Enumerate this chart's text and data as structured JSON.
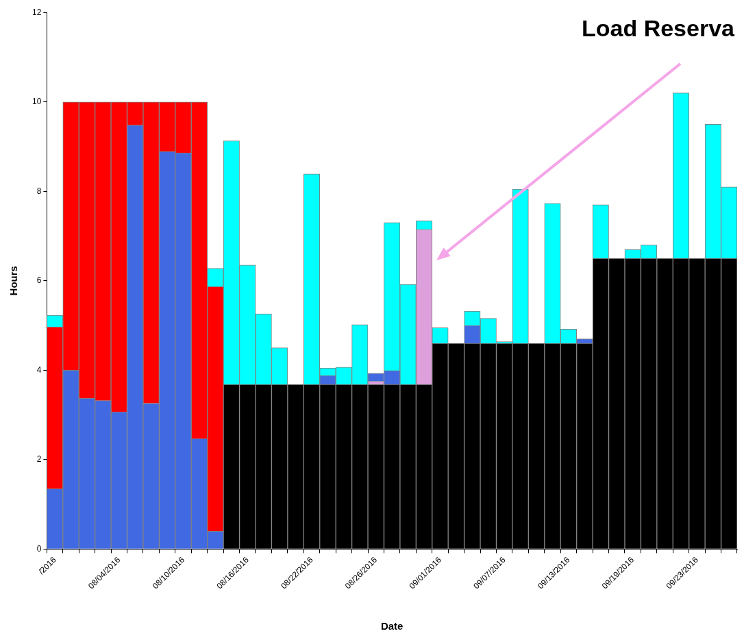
{
  "chart_data": {
    "type": "bar",
    "title": "Load Reserva",
    "xlabel": "Date",
    "ylabel": "Hours",
    "categories": [
      "/2016",
      null,
      null,
      null,
      "08/04/2016",
      null,
      null,
      null,
      "08/10/2016",
      null,
      null,
      null,
      "08/16/2016",
      null,
      null,
      null,
      "08/22/2016",
      null,
      null,
      null,
      "08/26/2016",
      null,
      null,
      null,
      "09/01/2016",
      null,
      null,
      null,
      "09/07/2016",
      null,
      null,
      null,
      "09/13/2016",
      null,
      null,
      null,
      "09/19/2016",
      null,
      null,
      null,
      "09/23/2016",
      null,
      null
    ],
    "stacked": true,
    "ylim": [
      0,
      12
    ],
    "yticks": [
      0,
      2,
      4,
      6,
      8,
      10,
      12
    ],
    "grid": false,
    "legend": false,
    "series": [
      {
        "color": "#000000",
        "values": [
          null,
          null,
          null,
          null,
          null,
          null,
          null,
          null,
          null,
          null,
          null,
          3.68,
          3.68,
          3.68,
          3.68,
          3.68,
          3.68,
          3.68,
          3.68,
          3.68,
          3.68,
          3.68,
          3.68,
          3.68,
          4.6,
          4.6,
          4.6,
          4.6,
          4.6,
          4.6,
          4.6,
          4.6,
          4.6,
          4.6,
          6.5,
          6.5,
          6.5,
          6.5,
          6.5,
          6.5,
          6.5,
          6.5,
          6.5
        ]
      },
      {
        "color": "#dda0dd",
        "values": [
          null,
          null,
          null,
          null,
          null,
          null,
          null,
          null,
          null,
          null,
          null,
          null,
          null,
          null,
          null,
          null,
          null,
          null,
          null,
          null,
          0.07,
          null,
          null,
          3.47,
          null,
          null,
          null,
          null,
          null,
          null,
          null,
          null,
          null,
          null,
          null,
          null,
          null,
          null,
          null,
          null,
          null,
          null,
          null
        ]
      },
      {
        "color": "#4169e1",
        "values": [
          1.35,
          4.0,
          3.37,
          3.32,
          3.07,
          9.48,
          3.26,
          8.89,
          8.86,
          2.47,
          0.4,
          null,
          null,
          null,
          null,
          null,
          null,
          0.2,
          null,
          null,
          0.18,
          0.31,
          null,
          null,
          null,
          null,
          0.4,
          null,
          null,
          null,
          null,
          null,
          null,
          0.1,
          null,
          null,
          null,
          null,
          null,
          null,
          null,
          null,
          null
        ]
      },
      {
        "color": "#ff0000",
        "values": [
          3.62,
          6.0,
          6.63,
          6.68,
          6.93,
          0.52,
          6.74,
          1.11,
          1.14,
          7.53,
          5.47,
          null,
          null,
          null,
          null,
          null,
          null,
          null,
          null,
          null,
          null,
          null,
          null,
          null,
          null,
          null,
          null,
          null,
          null,
          null,
          null,
          null,
          null,
          null,
          null,
          null,
          null,
          null,
          null,
          null,
          null,
          null,
          null
        ]
      },
      {
        "color": "#00ffff",
        "values": [
          0.26,
          null,
          null,
          null,
          null,
          null,
          null,
          null,
          null,
          null,
          0.41,
          5.45,
          2.67,
          1.58,
          0.82,
          null,
          4.71,
          0.17,
          0.39,
          1.34,
          null,
          3.31,
          2.24,
          0.19,
          0.35,
          null,
          0.32,
          0.56,
          0.04,
          3.45,
          null,
          3.13,
          0.32,
          null,
          1.2,
          null,
          0.2,
          0.3,
          null,
          3.7,
          null,
          3.0,
          1.6
        ]
      }
    ]
  }
}
